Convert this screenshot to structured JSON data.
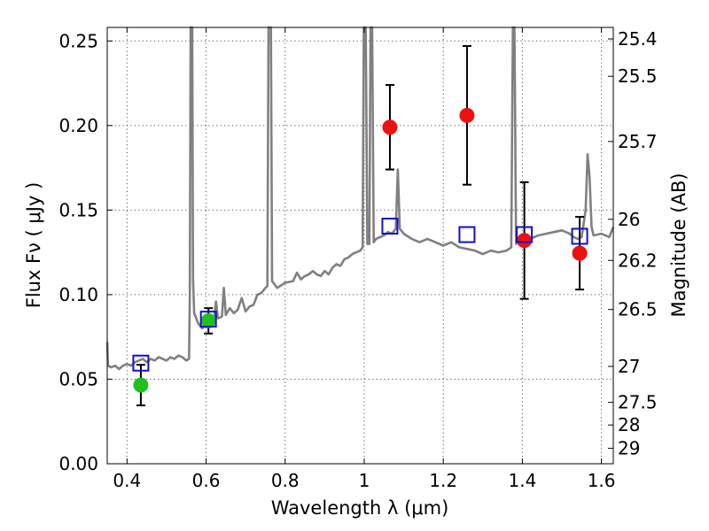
{
  "chart_data": {
    "type": "scatter",
    "xlabel": "Wavelength  λ (μm)",
    "ylabel": "Flux  Fν  ( μJy )",
    "y2label": "Magnitude (AB)",
    "xlim": [
      0.35,
      1.63
    ],
    "ylim": [
      0.0,
      0.258
    ],
    "grid": true,
    "x_ticks": [
      "0.4",
      "0.6",
      "0.8",
      "1",
      "1.2",
      "1.4",
      "1.6"
    ],
    "x_tick_values": [
      0.4,
      0.6,
      0.8,
      1.0,
      1.2,
      1.4,
      1.6
    ],
    "y_ticks": [
      "0.00",
      "0.05",
      "0.10",
      "0.15",
      "0.20",
      "0.25"
    ],
    "y_tick_values": [
      0.0,
      0.05,
      0.1,
      0.15,
      0.2,
      0.25
    ],
    "magnitude_ticks": [
      "25.4",
      "25.5",
      "25.7",
      "26",
      "26.2",
      "26.5",
      "27",
      "27.5",
      "28",
      "29"
    ],
    "magnitude_tick_values": [
      25.4,
      25.5,
      25.7,
      26.0,
      26.2,
      26.5,
      27.0,
      27.5,
      28.0,
      29.0
    ],
    "series": [
      {
        "marker": "circle",
        "color": "#1ec11e",
        "points": [
          {
            "x": 0.435,
            "y": 0.0465,
            "err": 0.012
          },
          {
            "x": 0.606,
            "y": 0.0845,
            "err": 0.0075
          }
        ]
      },
      {
        "marker": "circle",
        "color": "#ee1111",
        "points": [
          {
            "x": 1.065,
            "y": 0.199,
            "err": 0.025
          },
          {
            "x": 1.26,
            "y": 0.206,
            "err": 0.041
          },
          {
            "x": 1.405,
            "y": 0.132,
            "err": 0.0345
          },
          {
            "x": 1.545,
            "y": 0.1245,
            "err": 0.0215
          }
        ]
      },
      {
        "marker": "square",
        "color": "#1010cc",
        "points": [
          {
            "x": 0.435,
            "y": 0.0595
          },
          {
            "x": 0.606,
            "y": 0.0855
          },
          {
            "x": 1.065,
            "y": 0.1405
          },
          {
            "x": 1.26,
            "y": 0.1355
          },
          {
            "x": 1.405,
            "y": 0.1355
          },
          {
            "x": 1.545,
            "y": 0.1345
          }
        ]
      },
      {
        "type": "line",
        "color": "#808080",
        "points": [
          [
            0.35,
            0.072
          ],
          [
            0.352,
            0.058
          ],
          [
            0.36,
            0.057
          ],
          [
            0.37,
            0.058
          ],
          [
            0.38,
            0.056
          ],
          [
            0.39,
            0.058
          ],
          [
            0.4,
            0.059
          ],
          [
            0.41,
            0.058
          ],
          [
            0.42,
            0.06
          ],
          [
            0.43,
            0.061
          ],
          [
            0.44,
            0.062
          ],
          [
            0.45,
            0.06
          ],
          [
            0.46,
            0.062
          ],
          [
            0.47,
            0.061
          ],
          [
            0.48,
            0.063
          ],
          [
            0.49,
            0.062
          ],
          [
            0.5,
            0.061
          ],
          [
            0.51,
            0.063
          ],
          [
            0.52,
            0.062
          ],
          [
            0.53,
            0.064
          ],
          [
            0.54,
            0.063
          ],
          [
            0.55,
            0.061
          ],
          [
            0.557,
            0.062
          ],
          [
            0.559,
            0.1
          ],
          [
            0.561,
            0.258
          ],
          [
            0.565,
            0.258
          ],
          [
            0.567,
            0.11
          ],
          [
            0.57,
            0.089
          ],
          [
            0.58,
            0.083
          ],
          [
            0.59,
            0.08
          ],
          [
            0.6,
            0.082
          ],
          [
            0.61,
            0.084
          ],
          [
            0.62,
            0.085
          ],
          [
            0.625,
            0.096
          ],
          [
            0.63,
            0.086
          ],
          [
            0.64,
            0.087
          ],
          [
            0.645,
            0.104
          ],
          [
            0.65,
            0.088
          ],
          [
            0.66,
            0.092
          ],
          [
            0.67,
            0.089
          ],
          [
            0.68,
            0.091
          ],
          [
            0.69,
            0.098
          ],
          [
            0.7,
            0.09
          ],
          [
            0.71,
            0.093
          ],
          [
            0.72,
            0.094
          ],
          [
            0.73,
            0.1
          ],
          [
            0.74,
            0.101
          ],
          [
            0.75,
            0.104
          ],
          [
            0.755,
            0.105
          ],
          [
            0.758,
            0.258
          ],
          [
            0.764,
            0.258
          ],
          [
            0.767,
            0.108
          ],
          [
            0.78,
            0.104
          ],
          [
            0.8,
            0.107
          ],
          [
            0.82,
            0.108
          ],
          [
            0.83,
            0.113
          ],
          [
            0.84,
            0.109
          ],
          [
            0.85,
            0.111
          ],
          [
            0.86,
            0.112
          ],
          [
            0.87,
            0.114
          ],
          [
            0.88,
            0.112
          ],
          [
            0.89,
            0.111
          ],
          [
            0.9,
            0.114
          ],
          [
            0.91,
            0.112
          ],
          [
            0.92,
            0.116
          ],
          [
            0.93,
            0.118
          ],
          [
            0.94,
            0.117
          ],
          [
            0.95,
            0.121
          ],
          [
            0.96,
            0.122
          ],
          [
            0.97,
            0.124
          ],
          [
            0.98,
            0.125
          ],
          [
            0.99,
            0.126
          ],
          [
            0.996,
            0.128
          ],
          [
            0.999,
            0.258
          ],
          [
            1.004,
            0.258
          ],
          [
            1.008,
            0.13
          ],
          [
            1.013,
            0.13
          ],
          [
            1.016,
            0.258
          ],
          [
            1.02,
            0.258
          ],
          [
            1.024,
            0.131
          ],
          [
            1.03,
            0.133
          ],
          [
            1.05,
            0.135
          ],
          [
            1.06,
            0.137
          ],
          [
            1.07,
            0.136
          ],
          [
            1.08,
            0.139
          ],
          [
            1.085,
            0.174
          ],
          [
            1.09,
            0.139
          ],
          [
            1.1,
            0.136
          ],
          [
            1.12,
            0.133
          ],
          [
            1.14,
            0.131
          ],
          [
            1.16,
            0.133
          ],
          [
            1.18,
            0.131
          ],
          [
            1.2,
            0.129
          ],
          [
            1.22,
            0.131
          ],
          [
            1.24,
            0.128
          ],
          [
            1.26,
            0.127
          ],
          [
            1.28,
            0.126
          ],
          [
            1.3,
            0.124
          ],
          [
            1.32,
            0.126
          ],
          [
            1.34,
            0.125
          ],
          [
            1.36,
            0.126
          ],
          [
            1.372,
            0.128
          ],
          [
            1.376,
            0.258
          ],
          [
            1.38,
            0.258
          ],
          [
            1.384,
            0.13
          ],
          [
            1.39,
            0.133
          ],
          [
            1.4,
            0.131
          ],
          [
            1.42,
            0.133
          ],
          [
            1.44,
            0.135
          ],
          [
            1.46,
            0.136
          ],
          [
            1.48,
            0.137
          ],
          [
            1.5,
            0.138
          ],
          [
            1.52,
            0.136
          ],
          [
            1.53,
            0.134
          ],
          [
            1.54,
            0.133
          ],
          [
            1.55,
            0.134
          ],
          [
            1.56,
            0.15
          ],
          [
            1.565,
            0.183
          ],
          [
            1.57,
            0.17
          ],
          [
            1.575,
            0.14
          ],
          [
            1.58,
            0.135
          ],
          [
            1.6,
            0.136
          ],
          [
            1.62,
            0.134
          ],
          [
            1.63,
            0.14
          ]
        ]
      }
    ]
  }
}
